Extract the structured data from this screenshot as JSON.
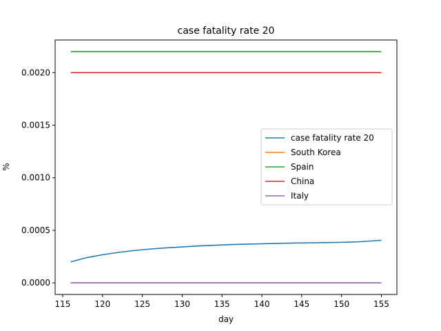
{
  "chart_data": {
    "type": "line",
    "title": "case fatality rate 20",
    "xlabel": "day",
    "ylabel": "%",
    "xlim": [
      114.05,
      156.95
    ],
    "ylim": [
      -0.00011,
      0.00231
    ],
    "xticks": [
      115,
      120,
      125,
      130,
      135,
      140,
      145,
      150,
      155
    ],
    "yticks": [
      0.0,
      0.0005,
      0.001,
      0.0015,
      0.002
    ],
    "ytick_labels": [
      "0.0000",
      "0.0005",
      "0.0010",
      "0.0015",
      "0.0020"
    ],
    "grid": false,
    "legend_position": "center-right",
    "series": [
      {
        "name": "case fatality rate 20",
        "color": "#1f77b4",
        "x": [
          116,
          118,
          120,
          122,
          124,
          126,
          128,
          130,
          132,
          134,
          136,
          138,
          140,
          142,
          144,
          146,
          148,
          150,
          152,
          153,
          154,
          155
        ],
        "y": [
          0.0002,
          0.00024,
          0.000268,
          0.00029,
          0.000308,
          0.000322,
          0.000333,
          0.000342,
          0.000351,
          0.000358,
          0.000364,
          0.000368,
          0.000372,
          0.000376,
          0.000379,
          0.000381,
          0.000383,
          0.000386,
          0.00039,
          0.000395,
          0.0004,
          0.000405
        ]
      },
      {
        "name": "South Korea",
        "color": "#ff7f0e",
        "x": [
          116,
          155
        ],
        "y": [
          0.0,
          0.0
        ]
      },
      {
        "name": "Spain",
        "color": "#2ca02c",
        "x": [
          116,
          155
        ],
        "y": [
          0.0022,
          0.0022
        ]
      },
      {
        "name": "China",
        "color": "#d62728",
        "x": [
          116,
          155
        ],
        "y": [
          0.002,
          0.002
        ]
      },
      {
        "name": "Italy",
        "color": "#9467bd",
        "x": [
          116,
          155
        ],
        "y": [
          0.0,
          0.0
        ]
      }
    ]
  }
}
